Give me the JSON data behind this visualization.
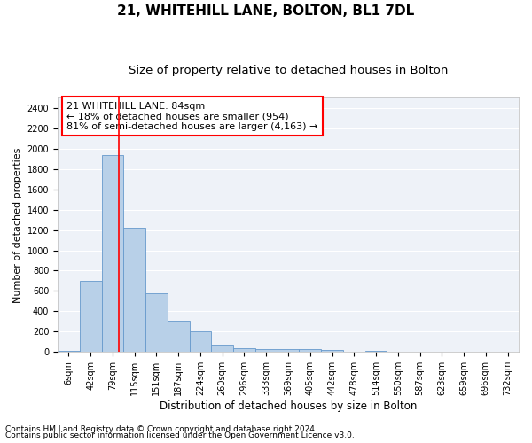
{
  "title1": "21, WHITEHILL LANE, BOLTON, BL1 7DL",
  "title2": "Size of property relative to detached houses in Bolton",
  "xlabel": "Distribution of detached houses by size in Bolton",
  "ylabel": "Number of detached properties",
  "bar_labels": [
    "6sqm",
    "42sqm",
    "79sqm",
    "115sqm",
    "151sqm",
    "187sqm",
    "224sqm",
    "260sqm",
    "296sqm",
    "333sqm",
    "369sqm",
    "405sqm",
    "442sqm",
    "478sqm",
    "514sqm",
    "550sqm",
    "587sqm",
    "623sqm",
    "659sqm",
    "696sqm",
    "732sqm"
  ],
  "bar_values": [
    15,
    700,
    1940,
    1220,
    575,
    305,
    200,
    75,
    40,
    30,
    25,
    25,
    20,
    5,
    10,
    2,
    1,
    1,
    1,
    1,
    1
  ],
  "bar_color": "#b8d0e8",
  "bar_edgecolor": "#6699cc",
  "ylim": [
    0,
    2500
  ],
  "yticks": [
    0,
    200,
    400,
    600,
    800,
    1000,
    1200,
    1400,
    1600,
    1800,
    2000,
    2200,
    2400
  ],
  "red_line_x": 2.27,
  "annotation_text": "21 WHITEHILL LANE: 84sqm\n← 18% of detached houses are smaller (954)\n81% of semi-detached houses are larger (4,163) →",
  "footnote1": "Contains HM Land Registry data © Crown copyright and database right 2024.",
  "footnote2": "Contains public sector information licensed under the Open Government Licence v3.0.",
  "bg_color": "#eef2f8",
  "grid_color": "#ffffff",
  "title1_fontsize": 11,
  "title2_fontsize": 9.5,
  "xlabel_fontsize": 8.5,
  "ylabel_fontsize": 8,
  "tick_fontsize": 7,
  "annotation_fontsize": 8,
  "footnote_fontsize": 6.5
}
